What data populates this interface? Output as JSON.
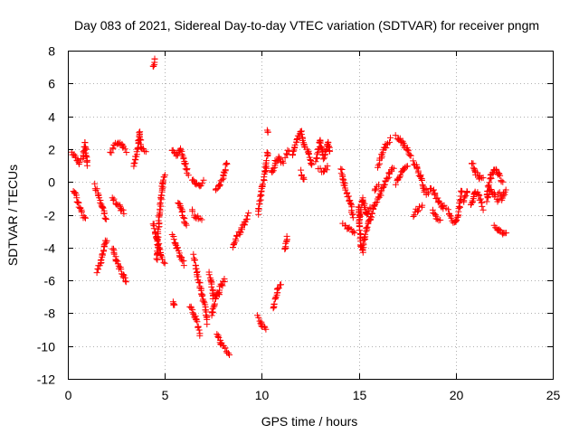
{
  "chart_data": {
    "type": "scatter",
    "title": "Day 083 of 2021, Sidereal Day-to-day VTEC variation (SDTVAR) for receiver pngm",
    "xlabel": "GPS time / hours",
    "ylabel": "SDTVAR / TECUs",
    "xlim": [
      0,
      25
    ],
    "ylim": [
      -12,
      8
    ],
    "xticks": [
      0,
      5,
      10,
      15,
      20,
      25
    ],
    "yticks": [
      -12,
      -10,
      -8,
      -6,
      -4,
      -2,
      0,
      2,
      4,
      6,
      8
    ],
    "grid": true,
    "marker": "plus",
    "color": "#ff0000",
    "series": [
      {
        "name": "pngm",
        "segments": [
          [
            [
              0.2,
              1.8
            ],
            [
              0.4,
              1.5
            ],
            [
              0.6,
              1.2
            ],
            [
              0.8,
              1.6
            ],
            [
              0.9,
              2.3
            ],
            [
              1.0,
              1.0
            ]
          ],
          [
            [
              0.3,
              -0.5
            ],
            [
              0.5,
              -1.2
            ],
            [
              0.7,
              -1.8
            ],
            [
              0.9,
              -2.3
            ]
          ],
          [
            [
              1.4,
              -0.2
            ],
            [
              1.6,
              -0.8
            ],
            [
              1.8,
              -1.6
            ],
            [
              2.0,
              -2.3
            ]
          ],
          [
            [
              1.5,
              -5.5
            ],
            [
              1.7,
              -4.9
            ],
            [
              1.9,
              -3.8
            ],
            [
              2.0,
              -3.5
            ]
          ],
          [
            [
              2.2,
              1.8
            ],
            [
              2.4,
              2.2
            ],
            [
              2.6,
              2.4
            ],
            [
              2.8,
              2.3
            ],
            [
              3.0,
              1.9
            ]
          ],
          [
            [
              2.3,
              -0.9
            ],
            [
              2.5,
              -1.3
            ],
            [
              2.7,
              -1.6
            ],
            [
              2.9,
              -1.9
            ]
          ],
          [
            [
              2.3,
              -4.0
            ],
            [
              2.5,
              -4.8
            ],
            [
              2.7,
              -5.3
            ],
            [
              2.9,
              -5.8
            ],
            [
              3.0,
              -6.0
            ]
          ],
          [
            [
              3.4,
              1.0
            ],
            [
              3.6,
              2.0
            ],
            [
              3.7,
              3.0
            ],
            [
              3.8,
              2.1
            ],
            [
              4.0,
              1.8
            ]
          ],
          [
            [
              4.4,
              7.0
            ],
            [
              4.5,
              7.5
            ]
          ],
          [
            [
              4.4,
              -2.5
            ],
            [
              4.6,
              -3.5
            ],
            [
              4.8,
              -4.5
            ],
            [
              5.0,
              -4.9
            ]
          ],
          [
            [
              4.6,
              -4.8
            ],
            [
              4.7,
              -2.2
            ],
            [
              4.8,
              -1.0
            ],
            [
              4.9,
              0.0
            ],
            [
              5.0,
              0.5
            ]
          ],
          [
            [
              5.4,
              2.0
            ],
            [
              5.6,
              1.6
            ],
            [
              5.8,
              2.0
            ],
            [
              6.0,
              1.2
            ],
            [
              6.2,
              0.5
            ]
          ],
          [
            [
              5.4,
              -3.3
            ],
            [
              5.6,
              -3.9
            ],
            [
              5.8,
              -4.5
            ],
            [
              6.0,
              -5.0
            ]
          ],
          [
            [
              5.4,
              -7.2
            ],
            [
              5.5,
              -7.6
            ]
          ],
          [
            [
              5.7,
              -1.2
            ],
            [
              5.9,
              -1.9
            ],
            [
              6.1,
              -2.7
            ]
          ],
          [
            [
              6.4,
              0.2
            ],
            [
              6.6,
              -0.1
            ],
            [
              6.8,
              -0.2
            ],
            [
              7.0,
              0.0
            ]
          ],
          [
            [
              6.4,
              -1.8
            ],
            [
              6.6,
              -2.1
            ],
            [
              6.9,
              -2.3
            ]
          ],
          [
            [
              6.3,
              -7.5
            ],
            [
              6.6,
              -8.3
            ],
            [
              6.8,
              -9.3
            ]
          ],
          [
            [
              6.5,
              -4.5
            ],
            [
              6.7,
              -5.8
            ],
            [
              6.9,
              -6.8
            ],
            [
              7.1,
              -7.8
            ],
            [
              7.2,
              -8.6
            ]
          ],
          [
            [
              7.3,
              -5.5
            ],
            [
              7.5,
              -7.0
            ],
            [
              7.8,
              -6.8
            ]
          ],
          [
            [
              7.4,
              -8.2
            ],
            [
              7.6,
              -7.2
            ],
            [
              7.9,
              -6.3
            ],
            [
              8.1,
              -6.0
            ]
          ],
          [
            [
              7.6,
              -0.5
            ],
            [
              7.8,
              -0.2
            ],
            [
              8.0,
              0.3
            ],
            [
              8.2,
              1.2
            ]
          ],
          [
            [
              7.7,
              -9.2
            ],
            [
              7.9,
              -9.8
            ],
            [
              8.1,
              -10.2
            ],
            [
              8.3,
              -10.5
            ]
          ],
          [
            [
              8.5,
              -4.0
            ],
            [
              8.7,
              -3.3
            ],
            [
              8.9,
              -3.0
            ],
            [
              9.1,
              -2.5
            ],
            [
              9.3,
              -2.0
            ]
          ],
          [
            [
              9.8,
              -8.2
            ],
            [
              10.0,
              -8.7
            ],
            [
              10.2,
              -9.0
            ]
          ],
          [
            [
              9.8,
              -2.0
            ],
            [
              10.0,
              -0.5
            ],
            [
              10.2,
              0.8
            ],
            [
              10.3,
              1.8
            ]
          ],
          [
            [
              10.3,
              3.1
            ]
          ],
          [
            [
              10.5,
              0.5
            ],
            [
              10.7,
              1.2
            ],
            [
              10.9,
              1.5
            ],
            [
              11.1,
              1.1
            ]
          ],
          [
            [
              10.6,
              -7.8
            ],
            [
              10.8,
              -6.5
            ],
            [
              11.0,
              -6.2
            ]
          ],
          [
            [
              11.2,
              -4.2
            ],
            [
              11.3,
              -3.3
            ]
          ],
          [
            [
              11.2,
              1.5
            ],
            [
              11.4,
              1.9
            ]
          ],
          [
            [
              11.6,
              1.6
            ],
            [
              11.8,
              2.6
            ],
            [
              12.0,
              3.1
            ],
            [
              12.2,
              2.2
            ],
            [
              12.4,
              1.8
            ],
            [
              12.6,
              1.0
            ]
          ],
          [
            [
              12.0,
              0.6
            ],
            [
              12.2,
              0.1
            ]
          ],
          [
            [
              12.8,
              1.2
            ],
            [
              13.0,
              2.6
            ],
            [
              13.2,
              1.5
            ],
            [
              13.4,
              2.4
            ],
            [
              13.5,
              1.8
            ]
          ],
          [
            [
              12.9,
              0.8
            ],
            [
              13.2,
              0.7
            ],
            [
              13.4,
              0.9
            ]
          ],
          [
            [
              14.1,
              0.8
            ],
            [
              14.2,
              0.0
            ],
            [
              14.4,
              -0.7
            ],
            [
              14.6,
              -1.4
            ],
            [
              14.7,
              -2.2
            ]
          ],
          [
            [
              14.2,
              -2.5
            ],
            [
              14.5,
              -2.9
            ],
            [
              14.8,
              -3.2
            ]
          ],
          [
            [
              15.0,
              -1.5
            ],
            [
              15.1,
              -3.8
            ],
            [
              15.2,
              -4.2
            ],
            [
              15.4,
              -2.8
            ],
            [
              15.6,
              -2.2
            ]
          ],
          [
            [
              15.0,
              -2.5
            ],
            [
              15.2,
              -1.0
            ],
            [
              15.4,
              -2.0
            ],
            [
              15.6,
              -1.5
            ]
          ],
          [
            [
              15.6,
              -2.3
            ],
            [
              15.8,
              -1.5
            ],
            [
              16.0,
              -1.0
            ],
            [
              16.2,
              -0.5
            ],
            [
              16.4,
              0.0
            ]
          ],
          [
            [
              15.8,
              -0.5
            ],
            [
              16.0,
              -0.2
            ]
          ],
          [
            [
              16.0,
              1.0
            ],
            [
              16.2,
              1.7
            ],
            [
              16.4,
              2.2
            ],
            [
              16.6,
              2.6
            ]
          ],
          [
            [
              16.4,
              0.1
            ],
            [
              16.6,
              0.6
            ],
            [
              16.8,
              0.9
            ]
          ],
          [
            [
              16.9,
              2.8
            ],
            [
              17.1,
              2.6
            ],
            [
              17.3,
              2.3
            ],
            [
              17.5,
              2.0
            ],
            [
              17.7,
              1.5
            ]
          ],
          [
            [
              16.9,
              -0.1
            ],
            [
              17.1,
              0.3
            ],
            [
              17.3,
              0.8
            ],
            [
              17.5,
              1.0
            ]
          ],
          [
            [
              17.8,
              1.2
            ],
            [
              18.0,
              0.9
            ],
            [
              18.2,
              0.2
            ],
            [
              18.4,
              -0.5
            ],
            [
              18.6,
              -0.8
            ]
          ],
          [
            [
              17.8,
              -2.0
            ],
            [
              18.0,
              -1.7
            ],
            [
              18.3,
              -1.5
            ]
          ],
          [
            [
              18.7,
              -0.3
            ],
            [
              18.9,
              -0.7
            ],
            [
              19.1,
              -1.2
            ],
            [
              19.3,
              -1.5
            ],
            [
              19.5,
              -1.5
            ]
          ],
          [
            [
              18.8,
              -1.8
            ],
            [
              19.0,
              -2.2
            ],
            [
              19.2,
              -2.4
            ]
          ],
          [
            [
              19.6,
              -1.8
            ],
            [
              19.8,
              -2.3
            ],
            [
              20.0,
              -2.5
            ],
            [
              20.2,
              -1.5
            ],
            [
              20.3,
              -0.5
            ]
          ],
          [
            [
              20.4,
              -1.2
            ],
            [
              20.6,
              -0.5
            ]
          ],
          [
            [
              20.8,
              -1.5
            ],
            [
              21.0,
              -0.6
            ],
            [
              21.2,
              -0.8
            ],
            [
              21.4,
              -1.6
            ]
          ],
          [
            [
              20.8,
              1.2
            ],
            [
              21.0,
              0.6
            ],
            [
              21.2,
              0.3
            ],
            [
              21.4,
              0.2
            ]
          ],
          [
            [
              21.6,
              -0.8
            ],
            [
              21.8,
              0.3
            ],
            [
              22.0,
              0.8
            ],
            [
              22.2,
              0.5
            ],
            [
              22.4,
              0.0
            ]
          ],
          [
            [
              21.6,
              -1.2
            ],
            [
              21.8,
              -0.4
            ],
            [
              22.0,
              -0.8
            ],
            [
              22.2,
              -1.2
            ]
          ],
          [
            [
              22.0,
              -2.7
            ],
            [
              22.2,
              -3.0
            ],
            [
              22.4,
              -3.1
            ],
            [
              22.6,
              -3.2
            ]
          ],
          [
            [
              22.2,
              -0.6
            ],
            [
              22.4,
              -1.0
            ],
            [
              22.6,
              -0.5
            ]
          ]
        ]
      }
    ]
  }
}
